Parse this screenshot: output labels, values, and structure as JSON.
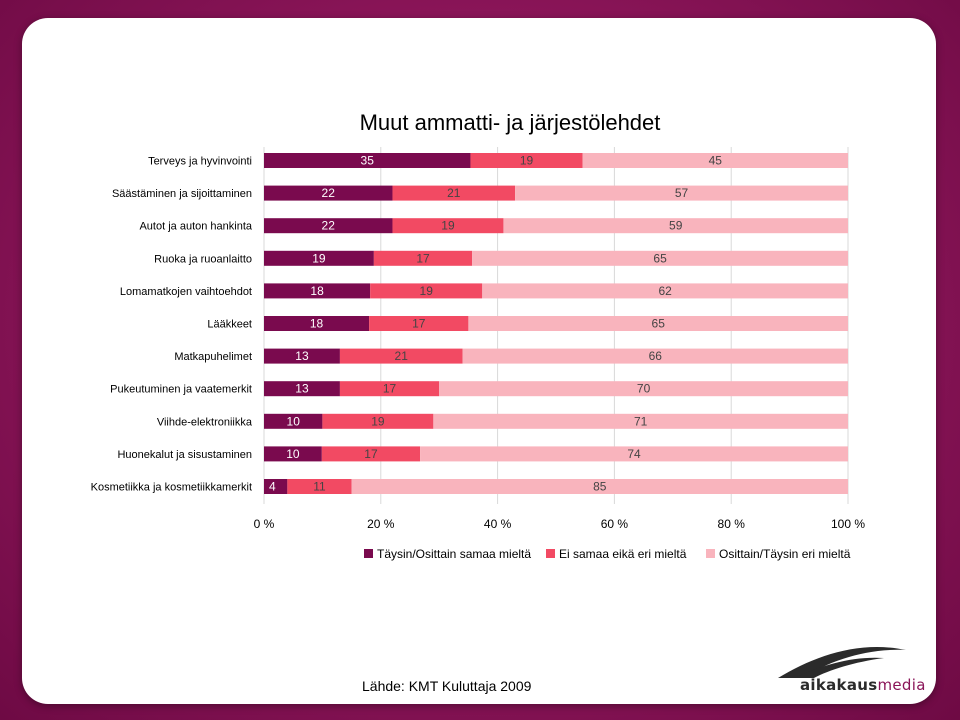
{
  "chart_data": {
    "type": "bar",
    "orientation": "horizontal-stacked-100",
    "title": "Muut ammatti- ja järjestölehdet",
    "categories": [
      "Terveys ja hyvinvointi",
      "Säästäminen ja sijoittaminen",
      "Autot ja auton hankinta",
      "Ruoka ja ruoanlaitto",
      "Lomamatkojen vaihtoehdot",
      "Lääkkeet",
      "Matkapuhelimet",
      "Pukeutuminen ja vaatemerkit",
      "Viihde-elektroniikka",
      "Huonekalut ja sisustaminen",
      "Kosmetiikka ja kosmetiikkamerkit"
    ],
    "series": [
      {
        "name": "Täysin/Osittain samaa mieltä",
        "color": "#7a0a4e",
        "values": [
          35,
          22,
          22,
          19,
          18,
          18,
          13,
          13,
          10,
          10,
          4
        ]
      },
      {
        "name": "Ei samaa eikä eri mieltä",
        "color": "#f24a63",
        "values": [
          19,
          21,
          19,
          17,
          19,
          17,
          21,
          17,
          19,
          17,
          11
        ]
      },
      {
        "name": "Osittain/Täysin eri mieltä",
        "color": "#f9b4bd",
        "values": [
          45,
          57,
          59,
          65,
          62,
          65,
          66,
          70,
          71,
          74,
          85
        ]
      }
    ],
    "xticks": [
      "0 %",
      "20 %",
      "40 %",
      "60 %",
      "80 %",
      "100 %"
    ],
    "xlim": [
      0,
      100
    ],
    "legend": "bottom"
  },
  "footer": {
    "source": "Lähde: KMT Kuluttaja 2009",
    "logo_main": "aikakaus",
    "logo_accent": "media"
  }
}
